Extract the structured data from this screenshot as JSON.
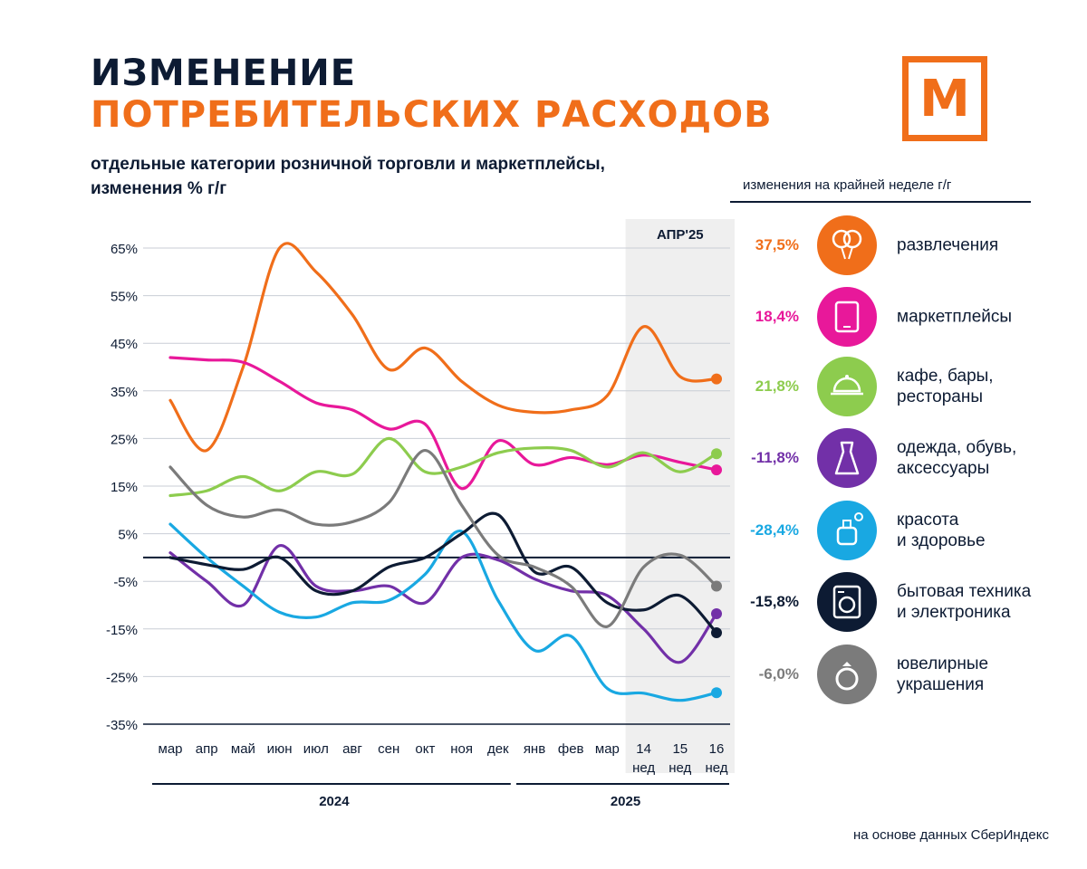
{
  "header": {
    "title_line1": "ИЗМЕНЕНИЕ",
    "title_line2": "ПОТРЕБИТЕЛЬСКИХ РАСХОДОВ",
    "subtitle": "отдельные категории розничной торговли и маркетплейсы,\nизменения % г/г",
    "logo_letter": "М"
  },
  "legend": {
    "heading": "изменения на крайней неделе г/г",
    "items": [
      {
        "label": "развлечения",
        "value": "37,5%",
        "color": "#f06e1a",
        "icon": "balloons-icon"
      },
      {
        "label": "маркетплейсы",
        "value": "18,4%",
        "color": "#e8189a",
        "icon": "tablet-icon"
      },
      {
        "label": "кафе, бары,\nрестораны",
        "value": "21,8%",
        "color": "#8dcc4e",
        "icon": "cloche-icon"
      },
      {
        "label": "одежда, обувь,\nаксессуары",
        "value": "-11,8%",
        "color": "#7230a8",
        "icon": "dress-icon"
      },
      {
        "label": "красота\nи здоровье",
        "value": "-28,4%",
        "color": "#19a8e2",
        "icon": "perfume-icon"
      },
      {
        "label": "бытовая техника\nи электроника",
        "value": "-15,8%",
        "color": "#0d1b33",
        "icon": "washing-machine-icon"
      },
      {
        "label": "ювелирные\nукрашения",
        "value": "-6,0%",
        "color": "#7b7b7b",
        "icon": "ring-icon"
      }
    ]
  },
  "source": "на основе данных СберИндекс",
  "chart_data": {
    "type": "line",
    "x": [
      "мар",
      "апр",
      "май",
      "июн",
      "июл",
      "авг",
      "сен",
      "окт",
      "ноя",
      "дек",
      "янв",
      "фев",
      "мар",
      "14 нед",
      "15 нед",
      "16 нед"
    ],
    "x_ticks": [
      {
        "line1": "мар",
        "line2": ""
      },
      {
        "line1": "апр",
        "line2": ""
      },
      {
        "line1": "май",
        "line2": ""
      },
      {
        "line1": "июн",
        "line2": ""
      },
      {
        "line1": "июл",
        "line2": ""
      },
      {
        "line1": "авг",
        "line2": ""
      },
      {
        "line1": "сен",
        "line2": ""
      },
      {
        "line1": "окт",
        "line2": ""
      },
      {
        "line1": "ноя",
        "line2": ""
      },
      {
        "line1": "дек",
        "line2": ""
      },
      {
        "line1": "янв",
        "line2": ""
      },
      {
        "line1": "фев",
        "line2": ""
      },
      {
        "line1": "мар",
        "line2": ""
      },
      {
        "line1": "14",
        "line2": "нед"
      },
      {
        "line1": "15",
        "line2": "нед"
      },
      {
        "line1": "16",
        "line2": "нед"
      }
    ],
    "y_ticks": [
      "65%",
      "55%",
      "45%",
      "35%",
      "25%",
      "15%",
      "5%",
      "-5%",
      "-15%",
      "-25%",
      "-35%"
    ],
    "ylim": [
      -35,
      65
    ],
    "year_groups": [
      {
        "label": "2024",
        "from": 0,
        "to": 9
      },
      {
        "label": "2025",
        "from": 10,
        "to": 15
      }
    ],
    "highlight": {
      "label": "АПР'25",
      "from": 13,
      "to": 15
    },
    "zero_line": 0,
    "series": [
      {
        "name": "развлечения",
        "color": "#f06e1a",
        "values": [
          33,
          22.5,
          40,
          65,
          60,
          51,
          39.5,
          44,
          37,
          32,
          30.5,
          31,
          34,
          48.5,
          38,
          37.5
        ]
      },
      {
        "name": "маркетплейсы",
        "color": "#e8189a",
        "values": [
          42,
          41.5,
          41,
          37,
          32.5,
          31,
          27,
          28,
          14.5,
          24.5,
          19.5,
          21,
          19.5,
          21.5,
          20,
          18.4
        ]
      },
      {
        "name": "кафе, бары, рестораны",
        "color": "#8dcc4e",
        "values": [
          13,
          14,
          17,
          14,
          18,
          17.5,
          25,
          18,
          19,
          22,
          23,
          22.5,
          19,
          22,
          18,
          21.8
        ]
      },
      {
        "name": "одежда, обувь, аксессуары",
        "color": "#7230a8",
        "values": [
          1,
          -5,
          -10,
          2.5,
          -6,
          -7,
          -6,
          -9.5,
          0,
          -0.5,
          -4.5,
          -7,
          -8,
          -15,
          -22,
          -11.8
        ]
      },
      {
        "name": "красота и здоровье",
        "color": "#19a8e2",
        "values": [
          7,
          0,
          -6,
          -11.5,
          -12.5,
          -9.5,
          -9,
          -3.5,
          5.5,
          -9,
          -19.5,
          -16.5,
          -27.5,
          -28.5,
          -30,
          -28.4
        ]
      },
      {
        "name": "бытовая техника и электроника",
        "color": "#0d1b33",
        "values": [
          0,
          -1.5,
          -2.5,
          0,
          -7,
          -7,
          -2,
          0,
          5,
          9,
          -3,
          -2,
          -9.5,
          -11,
          -8,
          -15.8
        ]
      },
      {
        "name": "ювелирные украшения",
        "color": "#7b7b7b",
        "values": [
          19,
          11,
          8.5,
          10,
          7,
          7.5,
          11.5,
          22.5,
          11,
          0.5,
          -2,
          -6,
          -14.5,
          -2,
          0.5,
          -6
        ]
      }
    ]
  }
}
